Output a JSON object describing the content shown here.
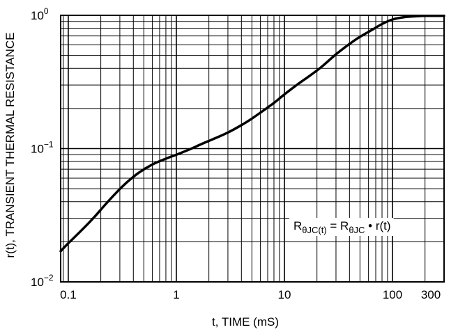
{
  "chart_data": {
    "type": "line",
    "title": "",
    "xlabel": "t, TIME (mS)",
    "ylabel": "r(t), TRANSIENT THERMAL RESISTANCE",
    "x_scale": "log",
    "y_scale": "log",
    "xlim": [
      0.085,
      300
    ],
    "ylim": [
      0.01,
      1
    ],
    "grid": true,
    "legend": "none",
    "line_color": "#000000",
    "x_tick_labels": [
      {
        "value": 0.1,
        "label": "0.1"
      },
      {
        "value": 1,
        "label": "1"
      },
      {
        "value": 10,
        "label": "10"
      },
      {
        "value": 100,
        "label": "100"
      },
      {
        "value": 300,
        "label": "300"
      }
    ],
    "y_tick_labels": [
      {
        "value": 0.01,
        "base": "10",
        "exp": "−2"
      },
      {
        "value": 0.1,
        "base": "10",
        "exp": "−1"
      },
      {
        "value": 1,
        "base": "10",
        "exp": "0"
      }
    ],
    "annotation": {
      "lhs": "R",
      "lhs_sub": "θJC(t)",
      "eq": " = ",
      "rhs": "R",
      "rhs_sub": "θJC",
      "bullet": " • ",
      "tail": "r(t)"
    },
    "series": [
      {
        "x": [
          0.085,
          0.1,
          0.13,
          0.17,
          0.22,
          0.28,
          0.35,
          0.45,
          0.6,
          0.8,
          1.0,
          1.3,
          1.7,
          2.2,
          3.0,
          4.0,
          5.0,
          6.5,
          8.0,
          10,
          13,
          17,
          22,
          30,
          40,
          50,
          65,
          80,
          100,
          130,
          170,
          200,
          300
        ],
        "y": [
          0.017,
          0.0195,
          0.024,
          0.03,
          0.038,
          0.047,
          0.056,
          0.066,
          0.076,
          0.084,
          0.09,
          0.098,
          0.108,
          0.118,
          0.132,
          0.15,
          0.168,
          0.195,
          0.22,
          0.255,
          0.3,
          0.35,
          0.41,
          0.51,
          0.61,
          0.69,
          0.78,
          0.86,
          0.93,
          0.97,
          0.985,
          0.99,
          0.99
        ]
      }
    ]
  }
}
